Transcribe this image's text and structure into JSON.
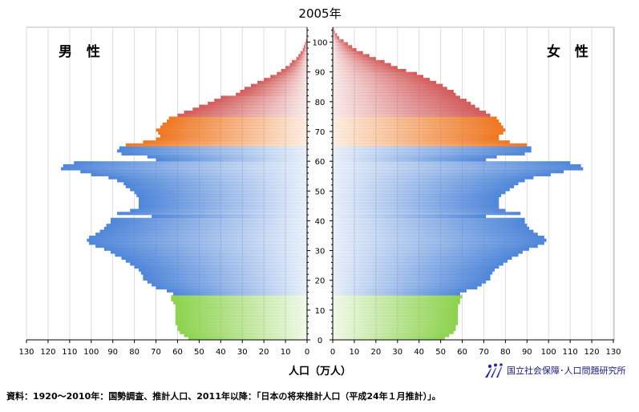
{
  "chart_data": {
    "type": "bar",
    "orientation": "horizontal-pyramid",
    "title": "2005年",
    "left_panel_label": "男 性",
    "right_panel_label": "女 性",
    "xlabel": "人口（万人）",
    "xlim": [
      0,
      130
    ],
    "x_ticks": [
      130,
      120,
      110,
      100,
      90,
      80,
      70,
      60,
      50,
      40,
      30,
      20,
      10,
      0
    ],
    "y_ticks": [
      0,
      10,
      20,
      30,
      40,
      50,
      60,
      70,
      80,
      90,
      100
    ],
    "ylim": [
      0,
      105
    ],
    "grid": true,
    "age_groups": [
      {
        "name": "0-14",
        "color": "#8cd24e"
      },
      {
        "name": "15-64",
        "color": "#4f86d9"
      },
      {
        "name": "65-74",
        "color": "#ee7722"
      },
      {
        "name": "75+",
        "color": "#d25a5a"
      }
    ],
    "series": [
      {
        "name": "男性",
        "age_points": [
          [
            0,
            55
          ],
          [
            1,
            57
          ],
          [
            2,
            59
          ],
          [
            3,
            60
          ],
          [
            4,
            60
          ],
          [
            5,
            61
          ],
          [
            6,
            61
          ],
          [
            7,
            61
          ],
          [
            8,
            61
          ],
          [
            9,
            61
          ],
          [
            10,
            61
          ],
          [
            11,
            61
          ],
          [
            12,
            62
          ],
          [
            13,
            63
          ],
          [
            14,
            63
          ],
          [
            15,
            62
          ],
          [
            16,
            65
          ],
          [
            17,
            70
          ],
          [
            18,
            72
          ],
          [
            19,
            74
          ],
          [
            20,
            76
          ],
          [
            21,
            76
          ],
          [
            22,
            77
          ],
          [
            23,
            78
          ],
          [
            24,
            80
          ],
          [
            25,
            82
          ],
          [
            26,
            84
          ],
          [
            27,
            86
          ],
          [
            28,
            89
          ],
          [
            29,
            91
          ],
          [
            30,
            94
          ],
          [
            31,
            98
          ],
          [
            32,
            101
          ],
          [
            33,
            102
          ],
          [
            34,
            101
          ],
          [
            35,
            98
          ],
          [
            36,
            96
          ],
          [
            37,
            94
          ],
          [
            38,
            93
          ],
          [
            39,
            91
          ],
          [
            40,
            91
          ],
          [
            41,
            72
          ],
          [
            42,
            88
          ],
          [
            43,
            82
          ],
          [
            44,
            78
          ],
          [
            45,
            78
          ],
          [
            46,
            78
          ],
          [
            47,
            78
          ],
          [
            48,
            79
          ],
          [
            49,
            80
          ],
          [
            50,
            82
          ],
          [
            51,
            84
          ],
          [
            52,
            85
          ],
          [
            53,
            88
          ],
          [
            54,
            92
          ],
          [
            55,
            100
          ],
          [
            56,
            105
          ],
          [
            57,
            114
          ],
          [
            58,
            113
          ],
          [
            59,
            108
          ],
          [
            60,
            70
          ],
          [
            61,
            74
          ],
          [
            62,
            86
          ],
          [
            63,
            88
          ],
          [
            64,
            87
          ],
          [
            65,
            84
          ],
          [
            66,
            76
          ],
          [
            67,
            70
          ],
          [
            68,
            68
          ],
          [
            69,
            69
          ],
          [
            70,
            70
          ],
          [
            71,
            68
          ],
          [
            72,
            67
          ],
          [
            73,
            65
          ],
          [
            74,
            64
          ],
          [
            75,
            60
          ],
          [
            76,
            57
          ],
          [
            77,
            53
          ],
          [
            78,
            50
          ],
          [
            79,
            46
          ],
          [
            80,
            43
          ],
          [
            81,
            40
          ],
          [
            82,
            33
          ],
          [
            83,
            31
          ],
          [
            84,
            29
          ],
          [
            85,
            26
          ],
          [
            86,
            23
          ],
          [
            87,
            20
          ],
          [
            88,
            17
          ],
          [
            89,
            14
          ],
          [
            90,
            12
          ],
          [
            91,
            10
          ],
          [
            92,
            8
          ],
          [
            93,
            7
          ],
          [
            94,
            5
          ],
          [
            95,
            4
          ],
          [
            96,
            3
          ],
          [
            97,
            2
          ],
          [
            98,
            1.5
          ],
          [
            99,
            1
          ],
          [
            100,
            0.5
          ]
        ]
      },
      {
        "name": "女性",
        "age_points": [
          [
            0,
            52
          ],
          [
            1,
            54
          ],
          [
            2,
            56
          ],
          [
            3,
            57
          ],
          [
            4,
            57
          ],
          [
            5,
            58
          ],
          [
            6,
            58
          ],
          [
            7,
            58
          ],
          [
            8,
            58
          ],
          [
            9,
            58
          ],
          [
            10,
            58
          ],
          [
            11,
            58
          ],
          [
            12,
            59
          ],
          [
            13,
            59
          ],
          [
            14,
            60
          ],
          [
            15,
            59
          ],
          [
            16,
            62
          ],
          [
            17,
            67
          ],
          [
            18,
            69
          ],
          [
            19,
            71
          ],
          [
            20,
            73
          ],
          [
            21,
            73
          ],
          [
            22,
            74
          ],
          [
            23,
            75
          ],
          [
            24,
            77
          ],
          [
            25,
            79
          ],
          [
            26,
            81
          ],
          [
            27,
            83
          ],
          [
            28,
            86
          ],
          [
            29,
            88
          ],
          [
            30,
            91
          ],
          [
            31,
            95
          ],
          [
            32,
            98
          ],
          [
            33,
            99
          ],
          [
            34,
            98
          ],
          [
            35,
            95
          ],
          [
            36,
            93
          ],
          [
            37,
            91
          ],
          [
            38,
            90
          ],
          [
            39,
            89
          ],
          [
            40,
            89
          ],
          [
            41,
            71
          ],
          [
            42,
            87
          ],
          [
            43,
            80
          ],
          [
            44,
            77
          ],
          [
            45,
            77
          ],
          [
            46,
            77
          ],
          [
            47,
            77
          ],
          [
            48,
            78
          ],
          [
            49,
            80
          ],
          [
            50,
            82
          ],
          [
            51,
            84
          ],
          [
            52,
            86
          ],
          [
            53,
            89
          ],
          [
            54,
            93
          ],
          [
            55,
            101
          ],
          [
            56,
            107
          ],
          [
            57,
            116
          ],
          [
            58,
            115
          ],
          [
            59,
            110
          ],
          [
            60,
            71
          ],
          [
            61,
            76
          ],
          [
            62,
            89
          ],
          [
            63,
            92
          ],
          [
            64,
            92
          ],
          [
            65,
            90
          ],
          [
            66,
            82
          ],
          [
            67,
            77
          ],
          [
            68,
            77
          ],
          [
            69,
            79
          ],
          [
            70,
            80
          ],
          [
            71,
            79
          ],
          [
            72,
            78
          ],
          [
            73,
            77
          ],
          [
            74,
            76
          ],
          [
            75,
            73
          ],
          [
            76,
            71
          ],
          [
            77,
            68
          ],
          [
            78,
            66
          ],
          [
            79,
            64
          ],
          [
            80,
            62
          ],
          [
            81,
            59
          ],
          [
            82,
            57
          ],
          [
            83,
            56
          ],
          [
            84,
            53
          ],
          [
            85,
            51
          ],
          [
            86,
            48
          ],
          [
            87,
            45
          ],
          [
            88,
            42
          ],
          [
            89,
            39
          ],
          [
            90,
            34
          ],
          [
            91,
            30
          ],
          [
            92,
            27
          ],
          [
            93,
            24
          ],
          [
            94,
            20
          ],
          [
            95,
            17
          ],
          [
            96,
            14
          ],
          [
            97,
            11
          ],
          [
            98,
            9
          ],
          [
            99,
            7
          ],
          [
            100,
            5
          ],
          [
            101,
            3
          ],
          [
            102,
            2
          ],
          [
            103,
            1
          ],
          [
            104,
            0.5
          ]
        ]
      }
    ]
  },
  "footnote": "資料：1920～2010年：国勢調査、推計人口、2011年以降：「日本の将来推計人口（平成24年１月推計）」。",
  "logo": {
    "icon": "ipss-logo-icon",
    "text": "国立社会保障･人口問題研究所"
  }
}
